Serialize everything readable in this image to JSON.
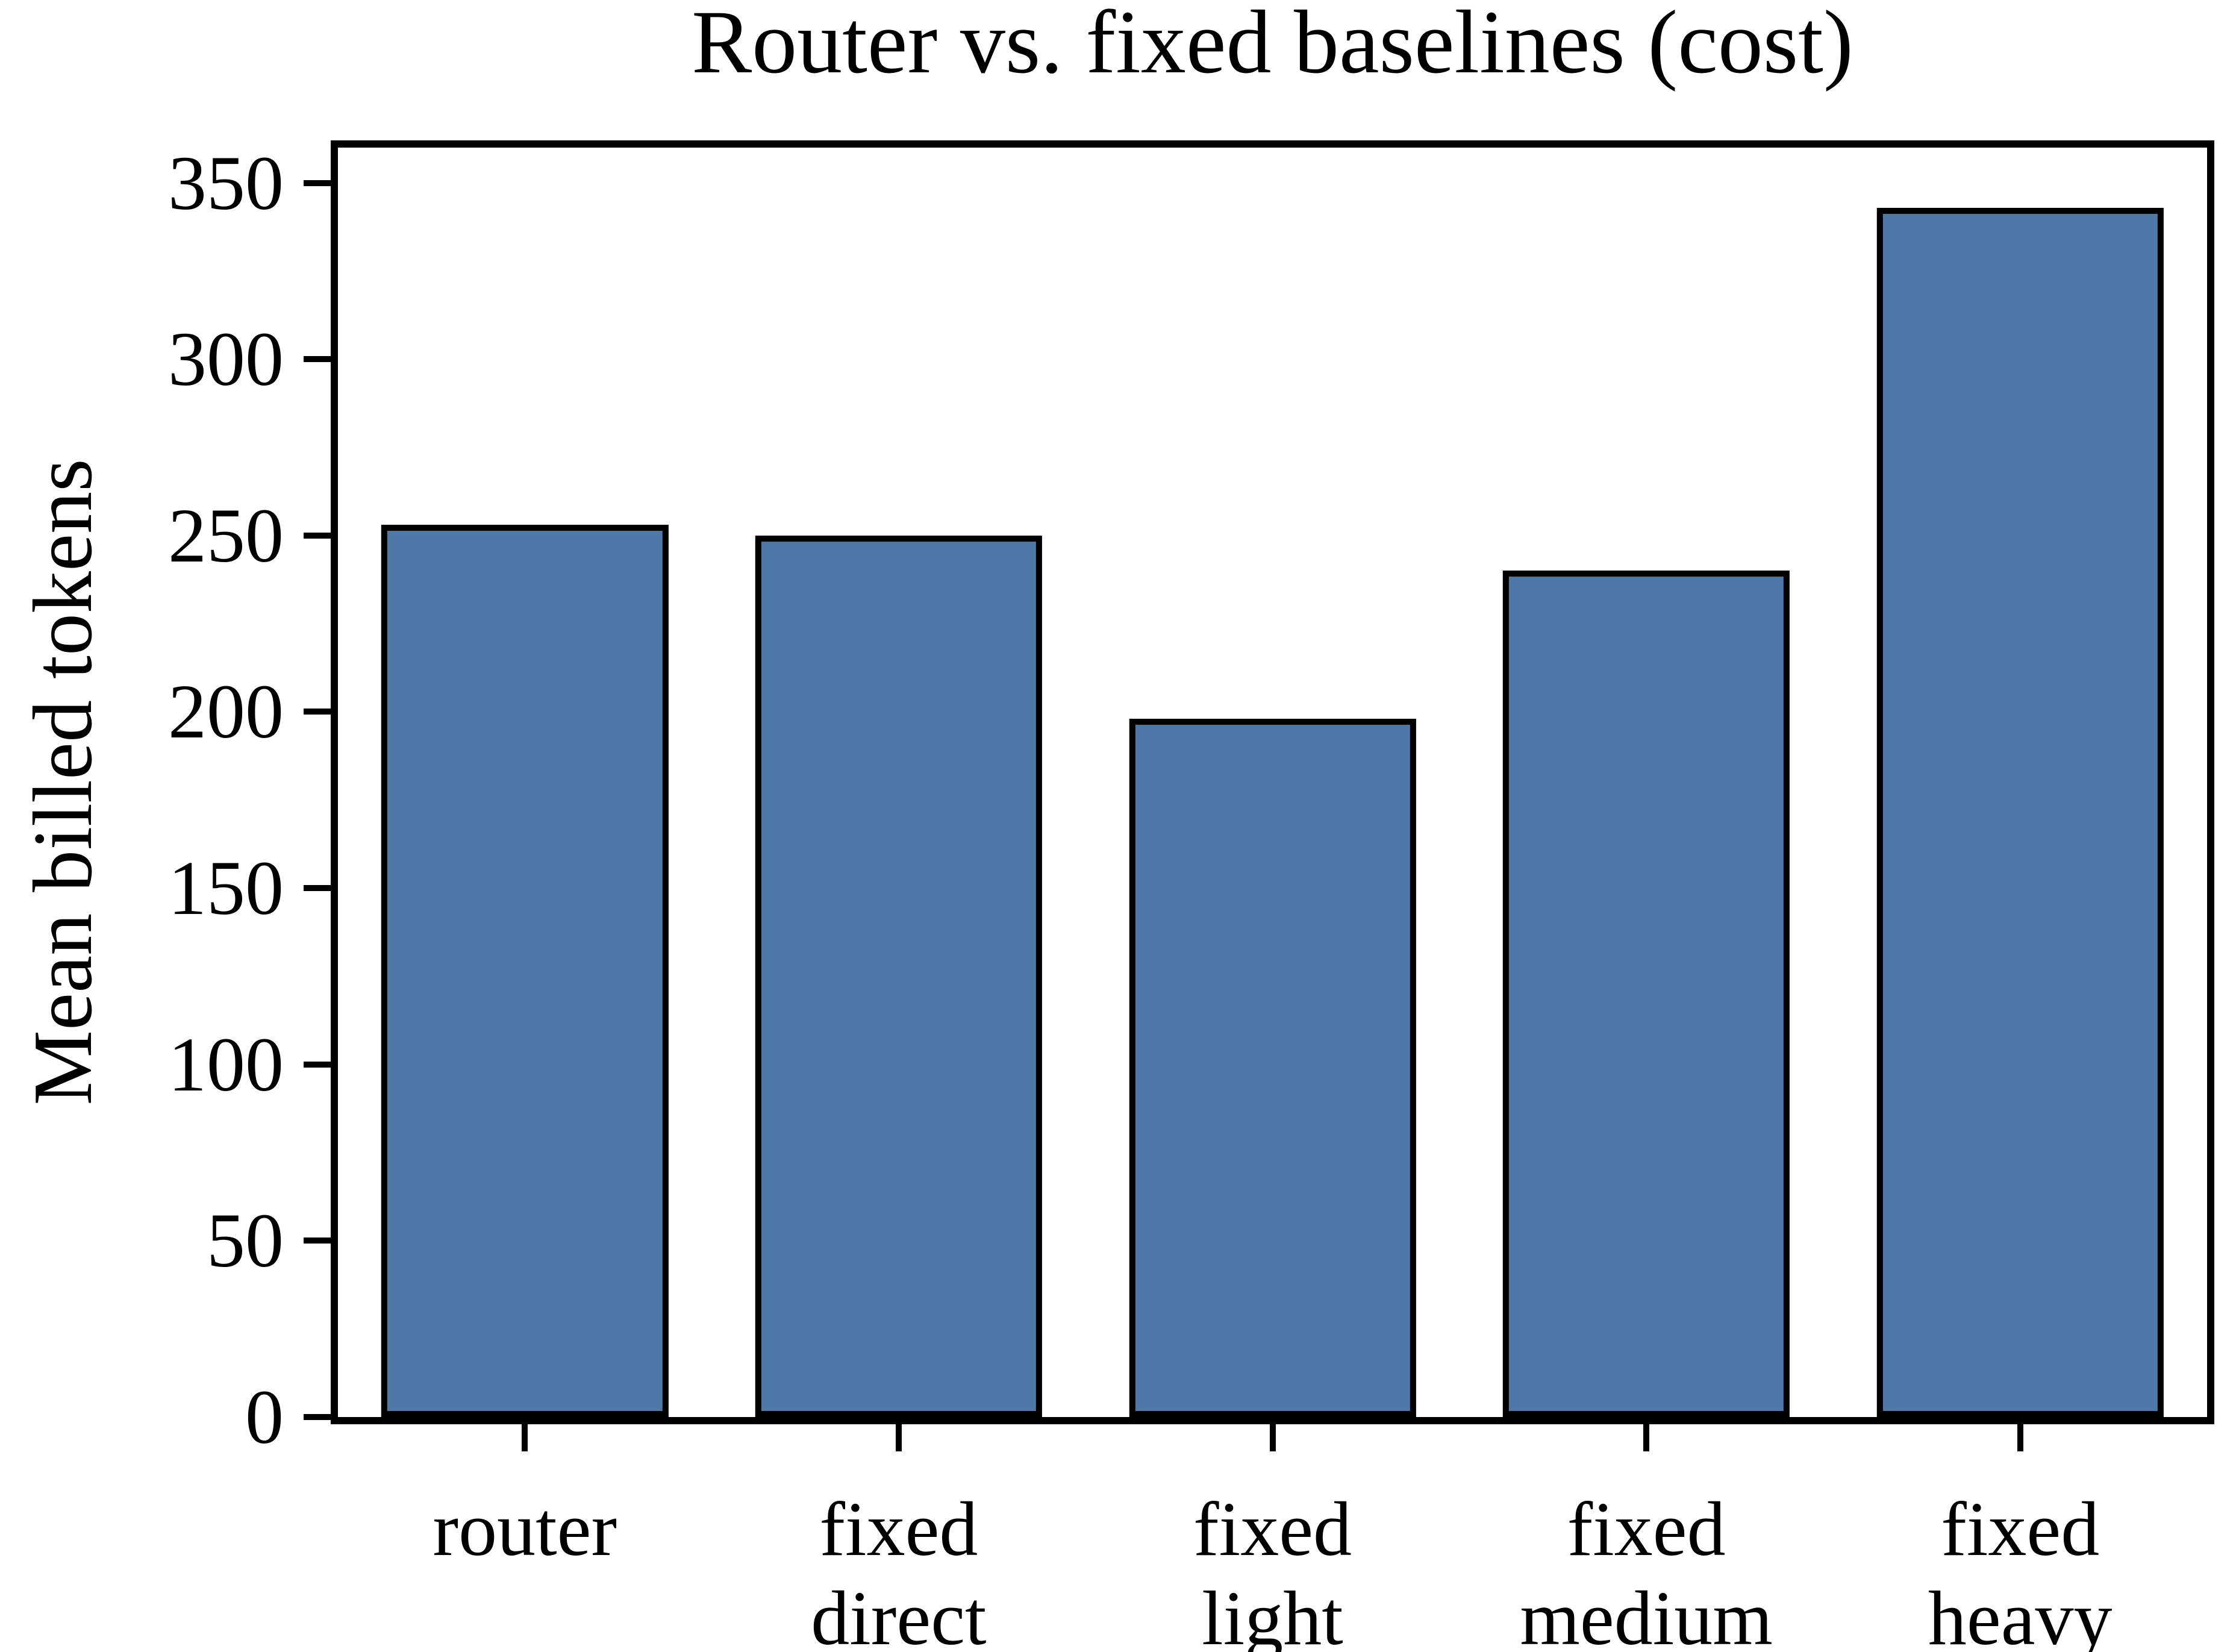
{
  "chart_data": {
    "type": "bar",
    "title": "Router vs. fixed baselines (cost)",
    "xlabel": "",
    "ylabel": "Mean billed tokens",
    "categories": [
      "router",
      "fixed\ndirect",
      "fixed\nlight",
      "fixed\nmedium",
      "fixed\nheavy"
    ],
    "values": [
      253,
      250,
      198,
      240,
      343
    ],
    "yticks": [
      0,
      50,
      100,
      150,
      200,
      250,
      300,
      350
    ],
    "ylim": [
      0,
      360
    ],
    "grid": false,
    "legend": null,
    "bar_color": "#4E78A8",
    "bar_edge_color": "#000000",
    "spine_color": "#000000",
    "background_color": "#ffffff"
  }
}
